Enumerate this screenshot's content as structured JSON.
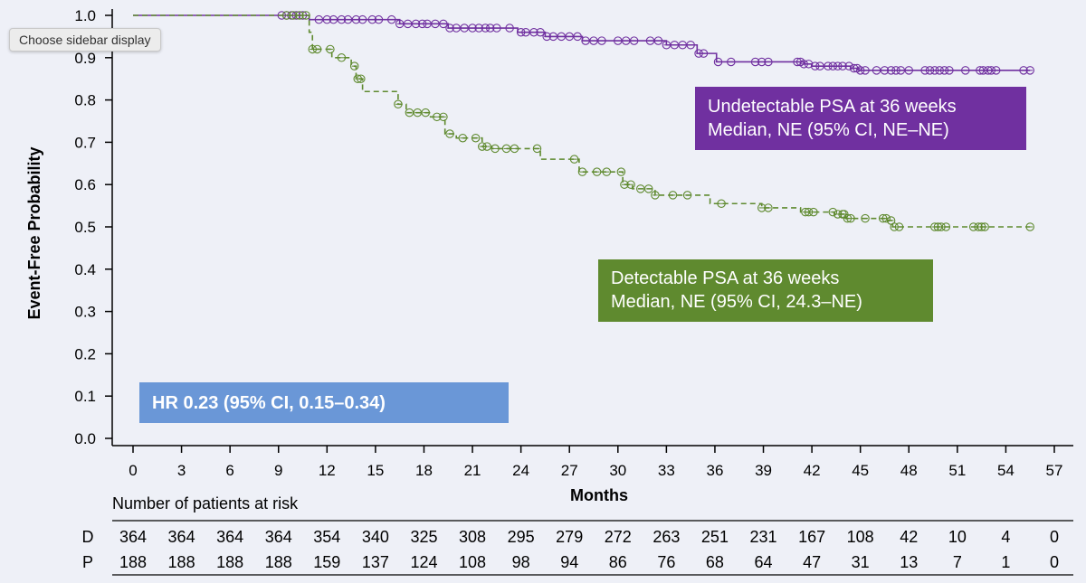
{
  "tooltip": "Choose sidebar display",
  "chart_data": {
    "type": "line",
    "ylabel": "Event-Free Probability",
    "xlabel": "Months",
    "xlim": [
      0,
      57
    ],
    "ylim": [
      0,
      1.0
    ],
    "x_ticks": [
      "0",
      "3",
      "6",
      "9",
      "12",
      "15",
      "18",
      "21",
      "24",
      "27",
      "30",
      "33",
      "36",
      "39",
      "42",
      "45",
      "48",
      "51",
      "54",
      "57"
    ],
    "y_ticks": [
      "0.0",
      "0.1",
      "0.2",
      "0.3",
      "0.4",
      "0.5",
      "0.6",
      "0.7",
      "0.8",
      "0.9",
      "1.0"
    ],
    "series": [
      {
        "name": "Undetectable PSA at 36 weeks",
        "color": "#7030a0",
        "style": "solid",
        "steps": [
          [
            0,
            1.0
          ],
          [
            10.9,
            0.99
          ],
          [
            16.5,
            0.98
          ],
          [
            19.5,
            0.97
          ],
          [
            23.8,
            0.96
          ],
          [
            25.5,
            0.95
          ],
          [
            27.8,
            0.94
          ],
          [
            33,
            0.93
          ],
          [
            34.9,
            0.91
          ],
          [
            36.1,
            0.89
          ],
          [
            41.5,
            0.885
          ],
          [
            42,
            0.88
          ],
          [
            44.4,
            0.875
          ],
          [
            44.9,
            0.87
          ],
          [
            55.5,
            0.87
          ]
        ],
        "censor_x": [
          9.2,
          9.5,
          9.8,
          10.1,
          10.5,
          11.5,
          12,
          12.4,
          12.9,
          13.3,
          13.8,
          14.2,
          14.8,
          15.2,
          16,
          16.5,
          17,
          17.5,
          17.9,
          18.2,
          18.7,
          19.2,
          19.6,
          20,
          20.5,
          21,
          21.4,
          21.8,
          22.1,
          22.5,
          23.3,
          24,
          24.3,
          24.8,
          25.2,
          25.6,
          26,
          26.5,
          27,
          27.5,
          28,
          28.5,
          29,
          30,
          30.5,
          31,
          32,
          32.5,
          33,
          33.5,
          34,
          34.5,
          35,
          35.3,
          36.2,
          37,
          38.5,
          38.9,
          39.3,
          41.1,
          41.3,
          41.5,
          41.8,
          42.2,
          42.5,
          43,
          43.3,
          43.6,
          43.9,
          44.3,
          44.6,
          44.8,
          45,
          45.3,
          46,
          46.5,
          46.9,
          47.2,
          47.5,
          48,
          49,
          49.3,
          49.6,
          49.9,
          50.2,
          50.5,
          51.5,
          52.4,
          52.6,
          52.9,
          53.1,
          53.4,
          55.1,
          55.5
        ],
        "label_lines": [
          "Undetectable PSA at 36 weeks",
          "Median, NE (95% CI, NE–NE)"
        ]
      },
      {
        "name": "Detectable PSA at 36 weeks",
        "color": "#5f8a2f",
        "style": "dashed",
        "steps": [
          [
            0,
            1.0
          ],
          [
            10.9,
            0.96
          ],
          [
            11.1,
            0.92
          ],
          [
            12.3,
            0.9
          ],
          [
            13.5,
            0.88
          ],
          [
            13.8,
            0.85
          ],
          [
            14.2,
            0.82
          ],
          [
            16.4,
            0.79
          ],
          [
            16.9,
            0.77
          ],
          [
            18.4,
            0.76
          ],
          [
            19.3,
            0.72
          ],
          [
            20,
            0.71
          ],
          [
            21.6,
            0.69
          ],
          [
            22.2,
            0.685
          ],
          [
            25.2,
            0.66
          ],
          [
            27.6,
            0.63
          ],
          [
            30.3,
            0.6
          ],
          [
            30.9,
            0.59
          ],
          [
            32.3,
            0.575
          ],
          [
            35.7,
            0.555
          ],
          [
            38.9,
            0.545
          ],
          [
            41.3,
            0.535
          ],
          [
            43.4,
            0.53
          ],
          [
            44.1,
            0.52
          ],
          [
            46.7,
            0.515
          ],
          [
            47,
            0.5
          ],
          [
            55.5,
            0.5
          ]
        ],
        "censor_x": [
          9.5,
          9.9,
          10.3,
          10.7,
          11.1,
          11.4,
          12.2,
          12.9,
          13.7,
          13.9,
          14.1,
          16.4,
          17.1,
          17.6,
          18.1,
          18.8,
          19.2,
          19.6,
          20.4,
          21.2,
          21.6,
          21.9,
          22.4,
          23.1,
          23.6,
          25,
          27.3,
          27.8,
          28.7,
          29.3,
          30.2,
          30.4,
          30.8,
          31.4,
          31.9,
          32.3,
          33.4,
          34.3,
          36.4,
          38.9,
          39.3,
          41.6,
          41.8,
          42.1,
          43.3,
          43.6,
          43.9,
          44,
          44.2,
          44.4,
          45.3,
          46.4,
          46.6,
          46.9,
          47.1,
          47.4,
          49.6,
          49.8,
          50,
          50.3,
          52,
          52.3,
          52.5,
          52.7,
          55.5
        ]
      }
    ],
    "risk_table": {
      "title": "Number of patients at risk",
      "times": [
        0,
        3,
        6,
        9,
        12,
        15,
        18,
        21,
        24,
        27,
        30,
        33,
        36,
        39,
        42,
        45,
        48,
        51,
        54,
        57
      ],
      "rows": [
        {
          "label": "D",
          "values": [
            "364",
            "364",
            "364",
            "364",
            "354",
            "340",
            "325",
            "308",
            "295",
            "279",
            "272",
            "263",
            "251",
            "231",
            "167",
            "108",
            "42",
            "10",
            "4",
            "0"
          ]
        },
        {
          "label": "P",
          "values": [
            "188",
            "188",
            "188",
            "188",
            "159",
            "137",
            "124",
            "108",
            "98",
            "94",
            "86",
            "76",
            "68",
            "64",
            "47",
            "31",
            "13",
            "7",
            "1",
            "0"
          ]
        }
      ]
    },
    "annotations": {
      "undetectable": [
        "Undetectable PSA at 36 weeks",
        "Median, NE (95% CI, NE–NE)"
      ],
      "detectable": [
        "Detectable PSA at 36 weeks",
        "Median, NE (95% CI, 24.3–NE)"
      ],
      "hr": "HR 0.23 (95% CI, 0.15–0.34)"
    }
  }
}
